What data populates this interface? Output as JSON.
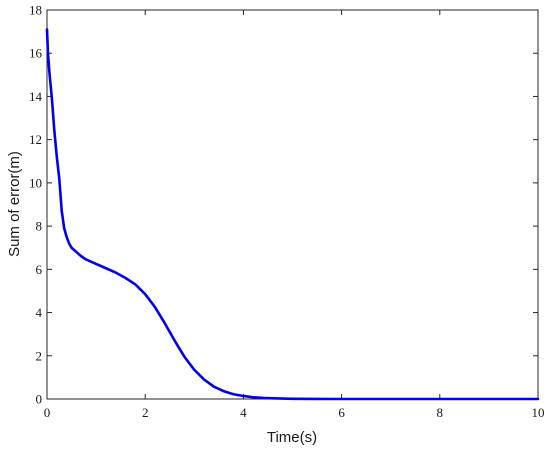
{
  "chart_data": {
    "type": "line",
    "title": "",
    "xlabel": "Time(s)",
    "ylabel": "Sum of error(m)",
    "xlim": [
      0,
      10
    ],
    "ylim": [
      0,
      18
    ],
    "xticks": [
      0,
      2,
      4,
      6,
      8,
      10
    ],
    "yticks": [
      0,
      2,
      4,
      6,
      8,
      10,
      12,
      14,
      16,
      18
    ],
    "xtick_labels": [
      "0",
      "2",
      "4",
      "6",
      "8",
      "10"
    ],
    "ytick_labels": [
      "0",
      "2",
      "4",
      "6",
      "8",
      "10",
      "12",
      "14",
      "16",
      "18"
    ],
    "grid": false,
    "legend": false,
    "series_color": "#0000ee",
    "series": [
      {
        "x": [
          0,
          0.02,
          0.05,
          0.1,
          0.15,
          0.2,
          0.25,
          0.3,
          0.35,
          0.4,
          0.45,
          0.5,
          0.55,
          0.6,
          0.7,
          0.8,
          1.0,
          1.2,
          1.4,
          1.6,
          1.8,
          2.0,
          2.2,
          2.4,
          2.6,
          2.8,
          3.0,
          3.2,
          3.4,
          3.6,
          3.8,
          4.0,
          4.2,
          4.4,
          4.6,
          4.8,
          5.0,
          5.5,
          6.0,
          7.0,
          8.0,
          9.0,
          10.0
        ],
        "y": [
          17.1,
          16.0,
          15.1,
          13.9,
          12.4,
          11.2,
          10.2,
          8.7,
          7.9,
          7.5,
          7.2,
          7.0,
          6.9,
          6.8,
          6.6,
          6.45,
          6.25,
          6.05,
          5.85,
          5.6,
          5.3,
          4.85,
          4.25,
          3.5,
          2.7,
          1.95,
          1.35,
          0.9,
          0.57,
          0.36,
          0.22,
          0.14,
          0.08,
          0.05,
          0.03,
          0.02,
          0.01,
          0.005,
          0.0,
          0.0,
          0.0,
          0.0,
          0.0
        ]
      }
    ]
  }
}
